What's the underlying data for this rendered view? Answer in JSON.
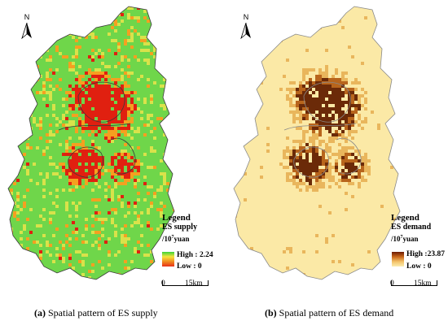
{
  "north_label": "N",
  "panels": [
    {
      "caption_letter": "(a)",
      "caption_text": " Spatial pattern of ES supply",
      "legend": {
        "title": "Legend",
        "item": "ES supply",
        "unit_prefix": "/10",
        "unit_exp": "7",
        "unit_suffix": "yuan",
        "high_label": "High : 2.24",
        "low_label": "Low : 0",
        "high_value": 2.24,
        "low_value": 0
      },
      "scalebar": {
        "zero": "0",
        "end": "15km"
      },
      "colors": {
        "base": "#6fd64a",
        "mid": "#d9e24a",
        "high": "#f5a020",
        "peak": "#e02010",
        "outline": "#3a3a3a"
      }
    },
    {
      "caption_letter": "(b)",
      "caption_text": " Spatial pattern of ES demand",
      "legend": {
        "title": "Legend",
        "item": "ES demand",
        "unit_prefix": "/10",
        "unit_exp": "7",
        "unit_suffix": "yuan",
        "high_label": "High :23.87",
        "low_label": "Low : 0",
        "high_value": 23.87,
        "low_value": 0
      },
      "scalebar": {
        "zero": "0",
        "end": "15km"
      },
      "colors": {
        "base": "#fbe9a6",
        "mid": "#e9b65c",
        "high": "#b8651c",
        "peak": "#6b2a08",
        "outline": "#8a8a8a"
      }
    }
  ]
}
